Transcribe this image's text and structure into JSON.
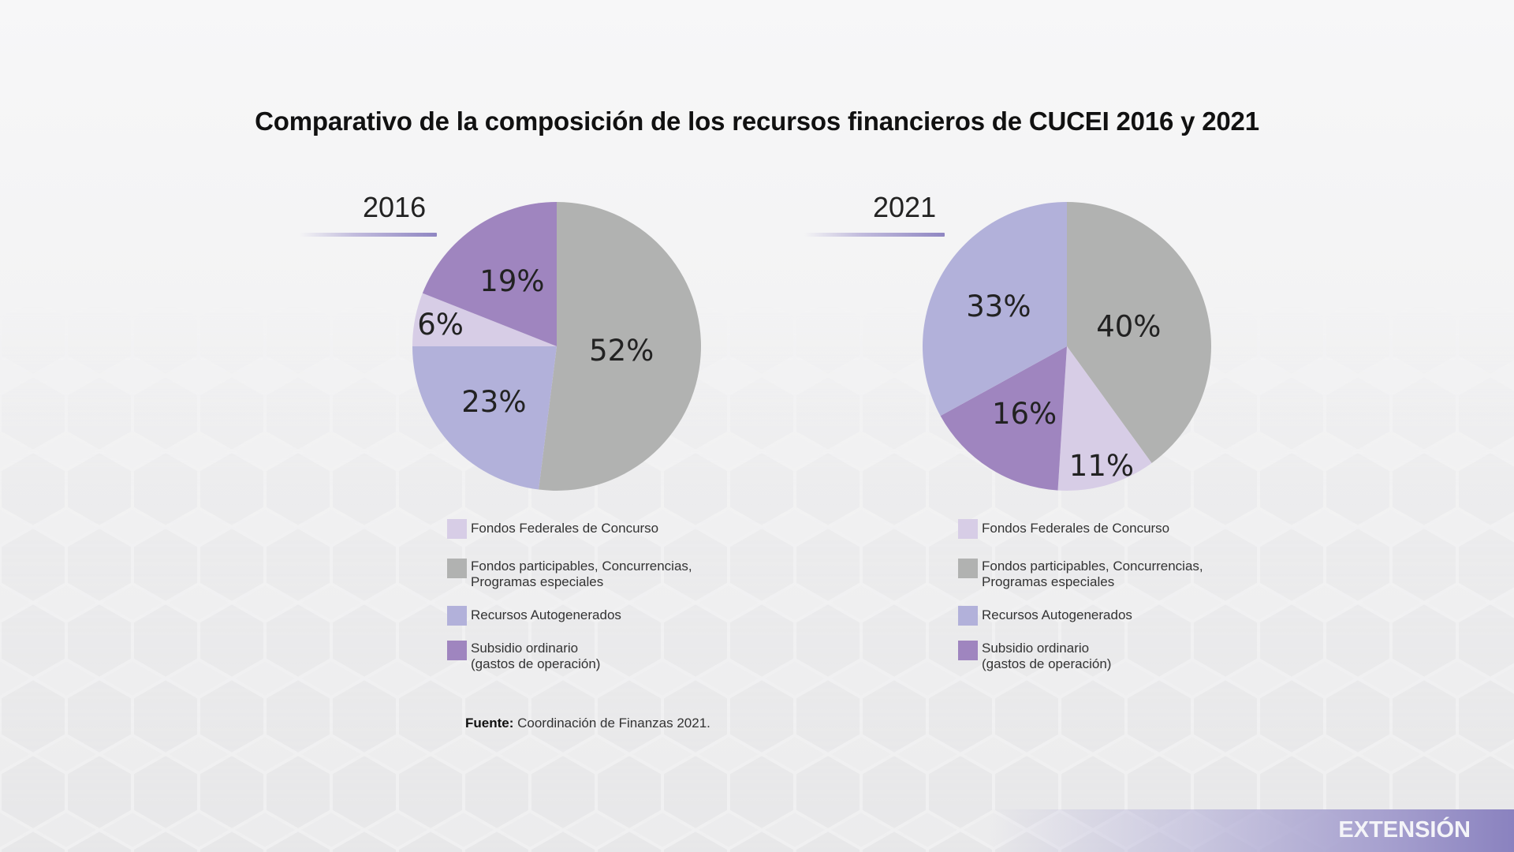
{
  "title": "Comparativo de la composición de los recursos financieros de CUCEI 2016 y 2021",
  "colors": {
    "fondos_federales": "#d7cde6",
    "fondos_participables": "#b1b2b1",
    "recursos_autogenerados": "#b2b1da",
    "subsidio_ordinario": "#9f85bf",
    "accent_line": "#8f86c2",
    "footer_band": "#8a82bf"
  },
  "chart_data": [
    {
      "type": "pie",
      "title": "2016",
      "start": "top",
      "direction": "clockwise",
      "slices": [
        {
          "key": "fondos_participables",
          "label": "Fondos participables, Concurrencias, Programas especiales",
          "value": 52,
          "text": "52%"
        },
        {
          "key": "recursos_autogenerados",
          "label": "Recursos Autogenerados",
          "value": 23,
          "text": "23%"
        },
        {
          "key": "fondos_federales",
          "label": "Fondos Federales de Concurso",
          "value": 6,
          "text": "6%"
        },
        {
          "key": "subsidio_ordinario",
          "label": "Subsidio ordinario (gastos de operación)",
          "value": 19,
          "text": "19%"
        }
      ]
    },
    {
      "type": "pie",
      "title": "2021",
      "start": "top",
      "direction": "clockwise",
      "slices": [
        {
          "key": "fondos_participables",
          "label": "Fondos participables, Concurrencias, Programas especiales",
          "value": 40,
          "text": "40%"
        },
        {
          "key": "fondos_federales",
          "label": "Fondos Federales de Concurso",
          "value": 11,
          "text": "11%"
        },
        {
          "key": "subsidio_ordinario",
          "label": "Subsidio ordinario (gastos de operación)",
          "value": 16,
          "text": "16%"
        },
        {
          "key": "recursos_autogenerados",
          "label": "Recursos Autogenerados",
          "value": 33,
          "text": "33%"
        }
      ]
    }
  ],
  "legend": [
    {
      "key": "fondos_federales",
      "line1": "Fondos Federales de Concurso",
      "line2": ""
    },
    {
      "key": "fondos_participables",
      "line1": "Fondos participables, Concurrencias,",
      "line2": "Programas especiales"
    },
    {
      "key": "recursos_autogenerados",
      "line1": "Recursos Autogenerados",
      "line2": ""
    },
    {
      "key": "subsidio_ordinario",
      "line1": "Subsidio ordinario",
      "line2": "(gastos de operación)"
    }
  ],
  "source": {
    "label": "Fuente:",
    "text": " Coordinación de Finanzas 2021."
  },
  "footer": {
    "section": "EXTENSIÓN"
  }
}
